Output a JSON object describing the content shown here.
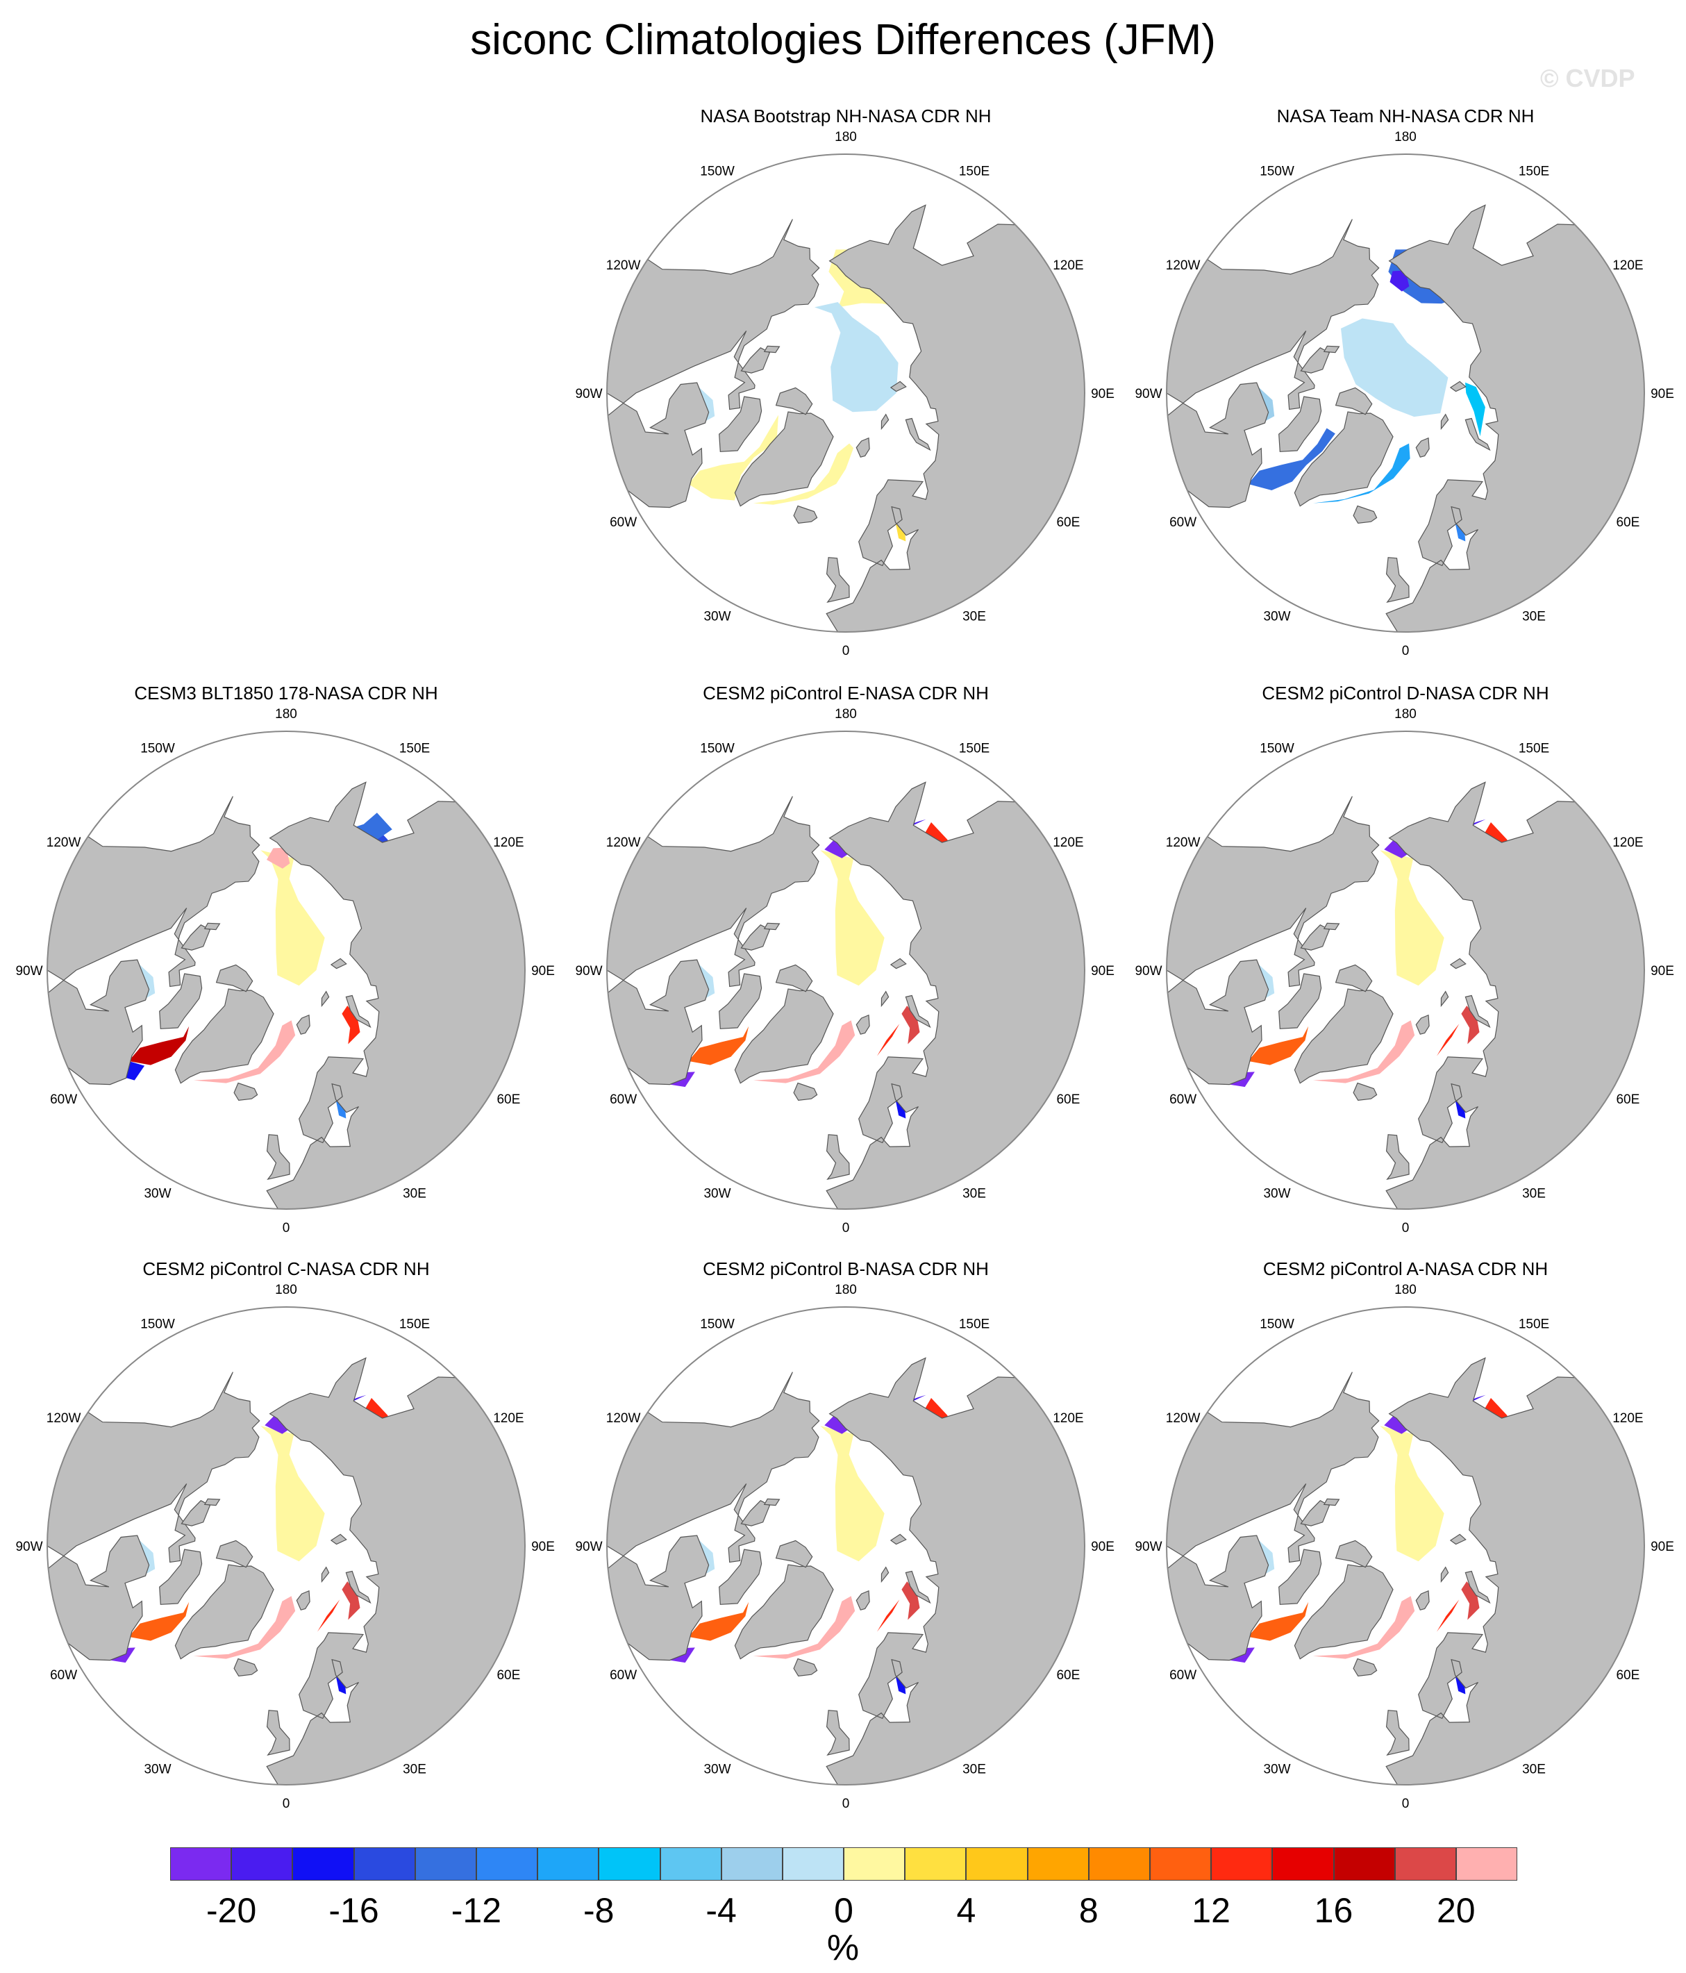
{
  "title": "siconc Climatologies Differences (JFM)",
  "watermark": "© CVDP",
  "units": "%",
  "colors": {
    "land": "#bebebe",
    "ocean": "#ffffff",
    "coast": "#555555",
    "palette": [
      "#7b2af0",
      "#4a1cf0",
      "#1010f5",
      "#2a4ae0",
      "#3570e0",
      "#2e86f5",
      "#1ea6f8",
      "#00c4f8",
      "#5ec6f2",
      "#9dcfec",
      "#bde3f5",
      "#fff8a0",
      "#ffe040",
      "#ffc81a",
      "#ffa500",
      "#ff8a00",
      "#ff6010",
      "#ff2a10",
      "#e60000",
      "#c40000",
      "#dc4848",
      "#ffb0b0"
    ]
  },
  "colorbar": {
    "ticks": [
      "-20",
      "-16",
      "-12",
      "-8",
      "-4",
      "0",
      "4",
      "8",
      "12",
      "16",
      "20"
    ]
  },
  "longitude_labels": [
    "180",
    "150E",
    "120E",
    "90E",
    "60E",
    "30E",
    "0",
    "30W",
    "60W",
    "90W",
    "120W",
    "150W"
  ],
  "panels": [
    {
      "title": "NASA Bootstrap NH-NASA CDR NH",
      "pattern": "bootstrap"
    },
    {
      "title": "NASA Team NH-NASA CDR NH",
      "pattern": "team"
    },
    {
      "title": "CESM3 BLT1850 178-NASA CDR NH",
      "pattern": "cesm3"
    },
    {
      "title": "CESM2 piControl E-NASA CDR NH",
      "pattern": "cesm2"
    },
    {
      "title": "CESM2 piControl D-NASA CDR NH",
      "pattern": "cesm2"
    },
    {
      "title": "CESM2 piControl C-NASA CDR NH",
      "pattern": "cesm2"
    },
    {
      "title": "CESM2 piControl B-NASA CDR NH",
      "pattern": "cesm2"
    },
    {
      "title": "CESM2 piControl A-NASA CDR NH",
      "pattern": "cesm2"
    }
  ]
}
